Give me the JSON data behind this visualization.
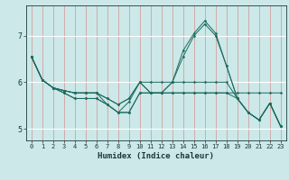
{
  "xlabel": "Humidex (Indice chaleur)",
  "bg_color": "#cce8e8",
  "line_color": "#1a6b60",
  "marker_color": "#1a6b60",
  "xlim": [
    -0.5,
    23.5
  ],
  "ylim": [
    4.75,
    7.65
  ],
  "yticks": [
    5,
    6,
    7
  ],
  "xticks": [
    0,
    1,
    2,
    3,
    4,
    5,
    6,
    7,
    8,
    9,
    10,
    11,
    12,
    13,
    14,
    15,
    16,
    17,
    18,
    19,
    20,
    21,
    22,
    23
  ],
  "series": [
    [
      6.55,
      6.05,
      5.88,
      5.82,
      5.77,
      5.77,
      5.77,
      5.52,
      5.35,
      5.35,
      5.77,
      5.77,
      5.77,
      5.77,
      5.77,
      5.77,
      5.77,
      5.77,
      5.77,
      5.77,
      5.77,
      5.77,
      5.77,
      5.77
    ],
    [
      6.55,
      6.05,
      5.88,
      5.77,
      5.65,
      5.65,
      5.65,
      5.52,
      5.35,
      5.58,
      6.0,
      5.77,
      5.77,
      6.0,
      6.68,
      7.05,
      7.32,
      7.05,
      6.35,
      5.65,
      5.35,
      5.19,
      5.55,
      5.05
    ],
    [
      6.55,
      6.05,
      5.88,
      5.82,
      5.77,
      5.77,
      5.77,
      5.65,
      5.52,
      5.65,
      6.0,
      5.77,
      5.77,
      6.0,
      6.55,
      7.0,
      7.25,
      7.0,
      6.35,
      5.65,
      5.35,
      5.19,
      5.55,
      5.05
    ],
    [
      6.55,
      6.05,
      5.88,
      5.77,
      5.65,
      5.65,
      5.65,
      5.52,
      5.35,
      5.35,
      5.77,
      5.77,
      5.77,
      5.77,
      5.77,
      5.77,
      5.77,
      5.77,
      5.77,
      5.65,
      5.35,
      5.19,
      5.55,
      5.05
    ],
    [
      6.55,
      6.05,
      5.88,
      5.82,
      5.77,
      5.77,
      5.77,
      5.65,
      5.52,
      5.65,
      6.0,
      6.0,
      6.0,
      6.0,
      6.0,
      6.0,
      6.0,
      6.0,
      6.0,
      5.65,
      5.35,
      5.19,
      5.55,
      5.05
    ]
  ],
  "vgrid_color": "#d4a0a0",
  "hgrid_color": "#ffffff",
  "tick_label_fontsize": 5.0,
  "xlabel_fontsize": 6.5,
  "ytick_fontsize": 6.0
}
